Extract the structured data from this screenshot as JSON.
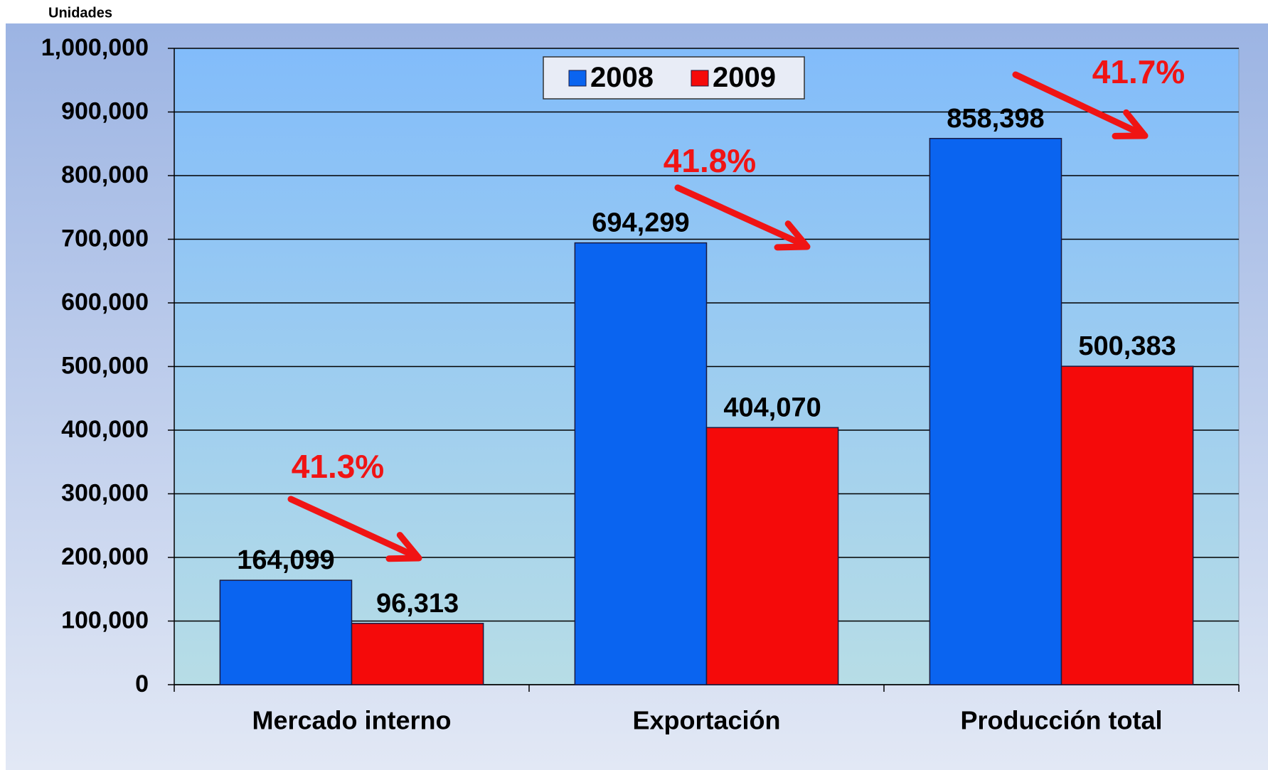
{
  "chart_data": {
    "type": "bar",
    "y_label": "Unidades",
    "categories": [
      "Mercado interno",
      "Exportación",
      "Producción total"
    ],
    "series": [
      {
        "name": "2008",
        "color": "#0a64f0",
        "values": [
          164099,
          694299,
          858398
        ],
        "value_labels": [
          "164,099",
          "694,299",
          "858,398"
        ]
      },
      {
        "name": "2009",
        "color": "#f50a0a",
        "values": [
          96313,
          404070,
          500383
        ],
        "value_labels": [
          "96,313",
          "404,070",
          "500,383"
        ]
      }
    ],
    "ylim": [
      0,
      1000000
    ],
    "yticks": [
      0,
      {
        "value": 100000,
        "label": "100,000"
      },
      {
        "value": 200000,
        "label": "200,000"
      },
      {
        "value": 300000,
        "label": "300,000"
      },
      {
        "value": 400000,
        "label": "400,000"
      },
      {
        "value": 500000,
        "label": "500,000"
      },
      {
        "value": 600000,
        "label": "600,000"
      },
      {
        "value": 700000,
        "label": "700,000"
      },
      {
        "value": 800000,
        "label": "800,000"
      },
      {
        "value": 900000,
        "label": "900,000"
      },
      {
        "value": 1000000,
        "label": "1,000,000"
      }
    ],
    "grid": true,
    "legend": "top",
    "annotations": [
      {
        "text": "41.3%"
      },
      {
        "text": "41.8%"
      },
      {
        "text": "41.7%"
      }
    ]
  }
}
